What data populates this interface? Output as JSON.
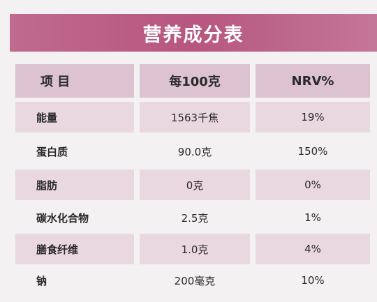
{
  "title": "营养成分表",
  "table": {
    "header": [
      "项  目",
      "每100克",
      "NRV%"
    ],
    "rows": [
      [
        "能量",
        "1563千焦",
        "19%"
      ],
      [
        "蛋白质",
        "90.0克",
        "150%"
      ],
      [
        "脂肪",
        "0克",
        "0%"
      ],
      [
        "碳水化合物",
        "2.5克",
        "1%"
      ],
      [
        "膳食纤维",
        "1.0克",
        "4%"
      ],
      [
        "钠",
        "200毫克",
        "10%"
      ]
    ]
  }
}
